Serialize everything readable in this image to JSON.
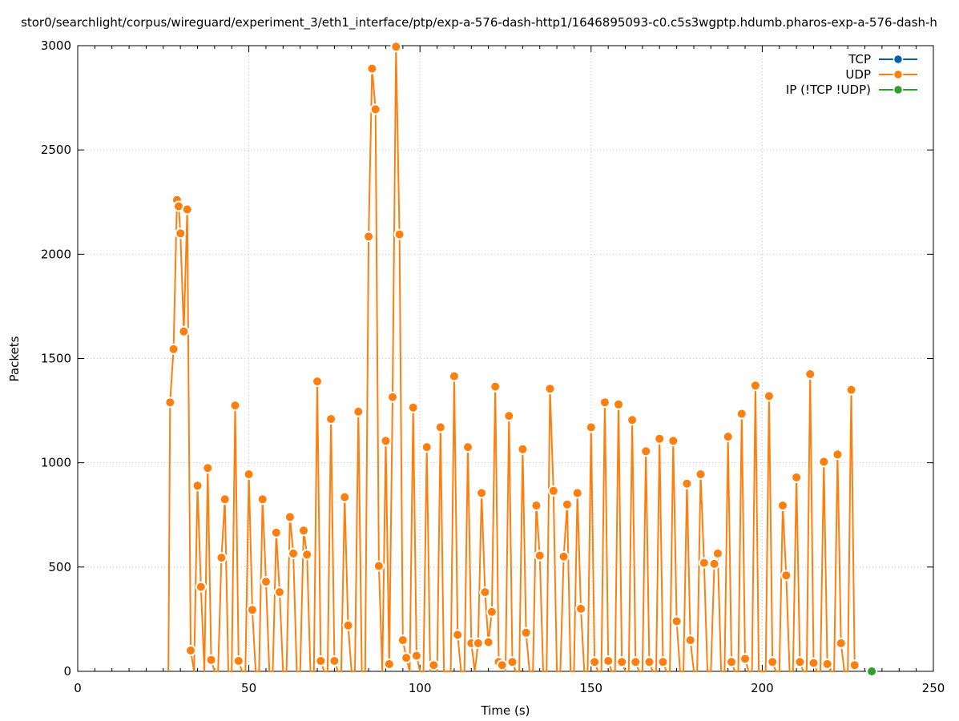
{
  "chart_data": {
    "type": "line",
    "title": "stor0/searchlight/corpus/wireguard/experiment_3/eth1_interface/ptp/exp-a-576-dash-http1/1646895093-c0.c5s3wgptp.hdumb.pharos-exp-a-576-dash-h",
    "xlabel": "Time (s)",
    "ylabel": "Packets",
    "xlim": [
      0,
      250
    ],
    "ylim": [
      0,
      3000
    ],
    "x_ticks": [
      0,
      50,
      100,
      150,
      200,
      250
    ],
    "y_ticks": [
      0,
      500,
      1000,
      1500,
      2000,
      2500,
      3000
    ],
    "grid": true,
    "legend_position": "top-right",
    "series": [
      {
        "name": "TCP",
        "color": "#0060ad",
        "points": []
      },
      {
        "name": "UDP",
        "color": "#ff7f0e",
        "points": [
          [
            26.5,
            0
          ],
          [
            27.0,
            1290
          ],
          [
            28.0,
            1545
          ],
          [
            29.0,
            2260
          ],
          [
            29.5,
            2230
          ],
          [
            30.0,
            2100
          ],
          [
            31.0,
            1630
          ],
          [
            32.0,
            2215
          ],
          [
            33.0,
            100
          ],
          [
            34.0,
            0
          ],
          [
            35.0,
            890
          ],
          [
            36.0,
            405
          ],
          [
            37.0,
            0
          ],
          [
            38.0,
            975
          ],
          [
            39.0,
            55
          ],
          [
            40.0,
            0
          ],
          [
            41.0,
            0
          ],
          [
            42.0,
            545
          ],
          [
            43.0,
            825
          ],
          [
            44.0,
            0
          ],
          [
            45.0,
            0
          ],
          [
            46.0,
            1275
          ],
          [
            47.0,
            50
          ],
          [
            48.0,
            0
          ],
          [
            49.0,
            0
          ],
          [
            50.0,
            945
          ],
          [
            51.0,
            295
          ],
          [
            52.0,
            0
          ],
          [
            53.0,
            0
          ],
          [
            54.0,
            825
          ],
          [
            55.0,
            430
          ],
          [
            56.0,
            0
          ],
          [
            57.0,
            0
          ],
          [
            58.0,
            665
          ],
          [
            59.0,
            380
          ],
          [
            60.0,
            0
          ],
          [
            61.0,
            0
          ],
          [
            62.0,
            740
          ],
          [
            63.0,
            565
          ],
          [
            64.0,
            0
          ],
          [
            65.0,
            0
          ],
          [
            66.0,
            675
          ],
          [
            67.0,
            560
          ],
          [
            68.0,
            0
          ],
          [
            69.0,
            0
          ],
          [
            70.0,
            1390
          ],
          [
            71.0,
            50
          ],
          [
            72.0,
            0
          ],
          [
            73.0,
            0
          ],
          [
            74.0,
            1210
          ],
          [
            75.0,
            50
          ],
          [
            76.0,
            0
          ],
          [
            77.0,
            0
          ],
          [
            78.0,
            835
          ],
          [
            79.0,
            220
          ],
          [
            80.0,
            0
          ],
          [
            81.0,
            0
          ],
          [
            82.0,
            1245
          ],
          [
            83.0,
            0
          ],
          [
            84.0,
            0
          ],
          [
            85.0,
            2085
          ],
          [
            86.0,
            2890
          ],
          [
            87.0,
            2695
          ],
          [
            88.0,
            505
          ],
          [
            89.0,
            0
          ],
          [
            90.0,
            1105
          ],
          [
            91.0,
            35
          ],
          [
            92.0,
            1315
          ],
          [
            93.0,
            2995
          ],
          [
            94.0,
            2095
          ],
          [
            95.0,
            150
          ],
          [
            96.0,
            65
          ],
          [
            97.0,
            0
          ],
          [
            98.0,
            1265
          ],
          [
            99.0,
            75
          ],
          [
            100.0,
            0
          ],
          [
            101.0,
            0
          ],
          [
            102.0,
            1075
          ],
          [
            103.0,
            0
          ],
          [
            104.0,
            30
          ],
          [
            105.0,
            0
          ],
          [
            106.0,
            1170
          ],
          [
            107.0,
            0
          ],
          [
            108.0,
            0
          ],
          [
            109.0,
            0
          ],
          [
            110.0,
            1415
          ],
          [
            111.0,
            175
          ],
          [
            112.0,
            0
          ],
          [
            113.0,
            0
          ],
          [
            114.0,
            1075
          ],
          [
            115.0,
            135
          ],
          [
            116.0,
            0
          ],
          [
            117.0,
            135
          ],
          [
            118.0,
            855
          ],
          [
            119.0,
            380
          ],
          [
            120.0,
            140
          ],
          [
            121.0,
            285
          ],
          [
            122.0,
            1365
          ],
          [
            123.0,
            45
          ],
          [
            124.0,
            30
          ],
          [
            125.0,
            0
          ],
          [
            126.0,
            1225
          ],
          [
            127.0,
            45
          ],
          [
            128.0,
            0
          ],
          [
            129.0,
            0
          ],
          [
            130.0,
            1065
          ],
          [
            131.0,
            185
          ],
          [
            132.0,
            0
          ],
          [
            133.0,
            0
          ],
          [
            134.0,
            795
          ],
          [
            135.0,
            555
          ],
          [
            136.0,
            0
          ],
          [
            137.0,
            0
          ],
          [
            138.0,
            1355
          ],
          [
            139.0,
            865
          ],
          [
            140.0,
            0
          ],
          [
            141.0,
            0
          ],
          [
            142.0,
            550
          ],
          [
            143.0,
            800
          ],
          [
            144.0,
            0
          ],
          [
            145.0,
            0
          ],
          [
            146.0,
            855
          ],
          [
            147.0,
            300
          ],
          [
            148.0,
            0
          ],
          [
            149.0,
            0
          ],
          [
            150.0,
            1170
          ],
          [
            151.0,
            45
          ],
          [
            152.0,
            0
          ],
          [
            153.0,
            0
          ],
          [
            154.0,
            1290
          ],
          [
            155.0,
            50
          ],
          [
            156.0,
            0
          ],
          [
            157.0,
            0
          ],
          [
            158.0,
            1280
          ],
          [
            159.0,
            45
          ],
          [
            160.0,
            0
          ],
          [
            161.0,
            0
          ],
          [
            162.0,
            1205
          ],
          [
            163.0,
            45
          ],
          [
            164.0,
            0
          ],
          [
            165.0,
            0
          ],
          [
            166.0,
            1055
          ],
          [
            167.0,
            45
          ],
          [
            168.0,
            0
          ],
          [
            169.0,
            0
          ],
          [
            170.0,
            1115
          ],
          [
            171.0,
            45
          ],
          [
            172.0,
            0
          ],
          [
            173.0,
            0
          ],
          [
            174.0,
            1105
          ],
          [
            175.0,
            240
          ],
          [
            176.0,
            0
          ],
          [
            177.0,
            0
          ],
          [
            178.0,
            900
          ],
          [
            179.0,
            150
          ],
          [
            180.0,
            0
          ],
          [
            181.0,
            0
          ],
          [
            182.0,
            945
          ],
          [
            183.0,
            520
          ],
          [
            184.0,
            0
          ],
          [
            185.0,
            0
          ],
          [
            186.0,
            515
          ],
          [
            187.0,
            565
          ],
          [
            188.0,
            0
          ],
          [
            189.0,
            0
          ],
          [
            190.0,
            1125
          ],
          [
            191.0,
            45
          ],
          [
            192.0,
            0
          ],
          [
            193.0,
            0
          ],
          [
            194.0,
            1235
          ],
          [
            195.0,
            60
          ],
          [
            196.0,
            0
          ],
          [
            197.0,
            0
          ],
          [
            198.0,
            1370
          ],
          [
            199.0,
            0
          ],
          [
            200.0,
            0
          ],
          [
            201.0,
            0
          ],
          [
            202.0,
            1320
          ],
          [
            203.0,
            45
          ],
          [
            204.0,
            0
          ],
          [
            205.0,
            0
          ],
          [
            206.0,
            795
          ],
          [
            207.0,
            460
          ],
          [
            208.0,
            0
          ],
          [
            209.0,
            0
          ],
          [
            210.0,
            930
          ],
          [
            211.0,
            45
          ],
          [
            212.0,
            0
          ],
          [
            213.0,
            0
          ],
          [
            214.0,
            1425
          ],
          [
            215.0,
            40
          ],
          [
            216.0,
            0
          ],
          [
            217.0,
            0
          ],
          [
            218.0,
            1005
          ],
          [
            219.0,
            35
          ],
          [
            220.0,
            0
          ],
          [
            221.0,
            0
          ],
          [
            222.0,
            1040
          ],
          [
            223.0,
            135
          ],
          [
            224.0,
            0
          ],
          [
            225.0,
            0
          ],
          [
            226.0,
            1350
          ],
          [
            227.0,
            30
          ]
        ]
      },
      {
        "name": "IP (!TCP  !UDP)",
        "color": "#2ca02c",
        "points": [
          [
            232.0,
            0
          ]
        ]
      }
    ]
  }
}
